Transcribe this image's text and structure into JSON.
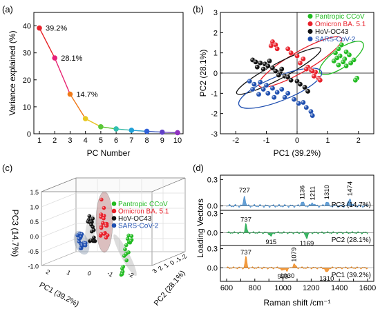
{
  "panel_labels": [
    "(a)",
    "(b)",
    "(c)",
    "(d)"
  ],
  "colors": {
    "pantropic": "#22bb22",
    "omicron": "#e8202a",
    "hov": "#111111",
    "sars": "#1f4fb0",
    "pc3_fill": "#4a8fcf",
    "pc2_fill": "#1aa84a",
    "pc1_fill": "#f08a1e"
  },
  "chart_data": [
    {
      "panel": "(a)",
      "type": "line",
      "xlabel": "PC Number",
      "ylabel": "Variance explained (%)",
      "xlim": [
        1,
        10
      ],
      "ylim": [
        0,
        45
      ],
      "xticks": [
        1,
        2,
        3,
        4,
        5,
        6,
        7,
        8,
        9,
        10
      ],
      "yticks": [
        0,
        10,
        20,
        30,
        40
      ],
      "x": [
        1,
        2,
        3,
        4,
        5,
        6,
        7,
        8,
        9,
        10
      ],
      "y": [
        39.2,
        28.1,
        14.7,
        5.6,
        2.6,
        1.8,
        1.3,
        0.9,
        0.6,
        0.4
      ],
      "point_colors": [
        "#e8202a",
        "#e8207a",
        "#f07a18",
        "#e8c820",
        "#5bc838",
        "#30c0b0",
        "#20a0d8",
        "#3060d8",
        "#6040c8",
        "#9030c0"
      ],
      "annotations": [
        {
          "x": 1,
          "y": 39.2,
          "text": "39.2%"
        },
        {
          "x": 2,
          "y": 28.1,
          "text": "28.1%"
        },
        {
          "x": 3,
          "y": 14.7,
          "text": "14.7%"
        }
      ]
    },
    {
      "panel": "(b)",
      "type": "scatter",
      "xlabel": "PC1 (39.2%)",
      "ylabel": "PC2 (28.1%)",
      "xlim": [
        -2.5,
        2.5
      ],
      "ylim": [
        -3,
        3
      ],
      "xticks": [
        -2,
        -1,
        0,
        1,
        2
      ],
      "yticks": [
        -3,
        -2,
        -1,
        0,
        1,
        2,
        3
      ],
      "legend": [
        "Pantropic CCoV",
        "Omicron BA. 5.1",
        "HoV-OC43",
        "SARS-CoV-2"
      ],
      "legend_position": "top-right",
      "series": [
        {
          "name": "Pantropic CCoV",
          "color": "#22bb22",
          "ellipse": {
            "cx": 1.45,
            "cy": 0.75,
            "rx": 0.85,
            "ry": 0.45,
            "angle": -35
          },
          "points": [
            [
              1.45,
              1.4
            ],
            [
              1.35,
              1.2
            ],
            [
              1.6,
              1.05
            ],
            [
              1.25,
              1.0
            ],
            [
              1.7,
              0.9
            ],
            [
              1.4,
              0.85
            ],
            [
              1.55,
              0.7
            ],
            [
              1.85,
              0.65
            ],
            [
              1.2,
              0.6
            ],
            [
              1.5,
              0.55
            ],
            [
              1.75,
              0.5
            ],
            [
              1.35,
              0.4
            ],
            [
              1.6,
              0.35
            ],
            [
              1.95,
              -0.25
            ],
            [
              1.9,
              -0.35
            ],
            [
              1.3,
              0.75
            ]
          ]
        },
        {
          "name": "Omicron BA. 5.1",
          "color": "#e8202a",
          "ellipse": {
            "cx": 0.1,
            "cy": 0.55,
            "rx": 1.55,
            "ry": 0.5,
            "angle": -30
          },
          "points": [
            [
              -0.8,
              1.55
            ],
            [
              -0.7,
              1.4
            ],
            [
              -0.85,
              1.35
            ],
            [
              -0.65,
              1.2
            ],
            [
              -0.3,
              1.2
            ],
            [
              -0.2,
              1.0
            ],
            [
              0.0,
              0.85
            ],
            [
              0.2,
              0.7
            ],
            [
              0.1,
              0.5
            ],
            [
              0.35,
              0.3
            ],
            [
              0.3,
              0.2
            ],
            [
              0.45,
              0.15
            ],
            [
              0.6,
              0.05
            ],
            [
              0.7,
              -0.25
            ],
            [
              0.75,
              -0.35
            ],
            [
              0.55,
              -0.15
            ],
            [
              0.5,
              0.1
            ]
          ]
        },
        {
          "name": "HoV-OC43",
          "color": "#111111",
          "ellipse": {
            "cx": -0.6,
            "cy": 0.1,
            "rx": 1.55,
            "ry": 0.38,
            "angle": -28
          },
          "points": [
            [
              -1.45,
              0.65
            ],
            [
              -1.35,
              0.55
            ],
            [
              -1.2,
              0.5
            ],
            [
              -1.05,
              0.45
            ],
            [
              -0.95,
              0.35
            ],
            [
              -1.1,
              0.2
            ],
            [
              -0.8,
              0.25
            ],
            [
              -0.7,
              0.1
            ],
            [
              -0.55,
              0.05
            ],
            [
              -0.6,
              -0.1
            ],
            [
              -0.4,
              -0.15
            ],
            [
              -0.3,
              -0.2
            ],
            [
              -0.2,
              -0.35
            ],
            [
              0.0,
              -0.4
            ],
            [
              0.1,
              -0.55
            ],
            [
              0.25,
              -0.7
            ],
            [
              0.35,
              -0.9
            ],
            [
              -0.9,
              0.6
            ],
            [
              -1.3,
              0.3
            ],
            [
              -0.5,
              0.2
            ]
          ]
        },
        {
          "name": "SARS-CoV-2",
          "color": "#1f4fb0",
          "ellipse": {
            "cx": -0.55,
            "cy": -0.75,
            "rx": 1.45,
            "ry": 0.6,
            "angle": -22
          },
          "points": [
            [
              -1.55,
              -0.4
            ],
            [
              -1.4,
              -0.55
            ],
            [
              -1.45,
              -0.8
            ],
            [
              -1.2,
              -0.45
            ],
            [
              -1.1,
              -0.8
            ],
            [
              -1.0,
              -0.6
            ],
            [
              -0.95,
              -1.0
            ],
            [
              -0.8,
              -0.75
            ],
            [
              -0.65,
              -0.95
            ],
            [
              -0.5,
              -0.8
            ],
            [
              -0.4,
              -1.2
            ],
            [
              -0.3,
              -1.0
            ],
            [
              -0.1,
              -1.3
            ],
            [
              0.05,
              -1.5
            ],
            [
              0.2,
              -1.45
            ],
            [
              0.3,
              -1.7
            ],
            [
              0.45,
              -1.9
            ],
            [
              0.5,
              -2.1
            ],
            [
              -0.75,
              -1.2
            ],
            [
              -1.25,
              -1.05
            ]
          ]
        }
      ]
    },
    {
      "panel": "(c)",
      "type": "scatter",
      "xlabel": "PC1 (39.2%)",
      "ylabel": "PC3 (14.7%)",
      "zlabel": "PC2 (28.1%)",
      "z_ticks": [
        "1.5",
        "1.0",
        "0.5",
        "0.0",
        "-0.5",
        "-1.0"
      ],
      "x_ticks": [
        "2",
        "1",
        "0",
        "-1",
        "-2"
      ],
      "y_ticks": [
        "3",
        "2",
        "1",
        "0",
        "-1",
        "-2"
      ],
      "legend": [
        "Pantropic CCoV",
        "Omicron BA. 5.1",
        "HoV-OC43",
        "SARS-CoV-2"
      ]
    },
    {
      "panel": "(d)",
      "type": "area",
      "xlabel": "Raman shift /cm⁻¹",
      "ylabel": "Loading Vectors",
      "xlim": [
        600,
        1600
      ],
      "xticks": [
        600,
        700,
        800,
        900,
        1000,
        1100,
        1200,
        1300,
        1400,
        1500,
        1600
      ],
      "subplots": [
        {
          "name": "PC3 (14.7%)",
          "color": "#4a8fcf",
          "ylim": [
            -0.05,
            0.35
          ],
          "yticks": [
            "0.3",
            "0.0"
          ],
          "peaks": [
            [
              727,
              0.13
            ],
            [
              1136,
              0.05
            ],
            [
              1211,
              0.04
            ],
            [
              1310,
              0.05
            ],
            [
              1474,
              0.09
            ]
          ],
          "labels": [
            [
              "727",
              "up"
            ],
            [
              "1136",
              "up"
            ],
            [
              "1211",
              "up"
            ],
            [
              "1310",
              "up"
            ],
            [
              "1474",
              "up"
            ]
          ]
        },
        {
          "name": "PC2 (28.1%)",
          "color": "#1aa84a",
          "ylim": [
            -0.2,
            0.35
          ],
          "yticks": [
            "0.3",
            "0.0"
          ],
          "peaks": [
            [
              737,
              0.14
            ],
            [
              915,
              -0.06
            ],
            [
              1169,
              -0.08
            ]
          ],
          "labels": [
            [
              "737",
              "up"
            ],
            [
              "915",
              "down"
            ],
            [
              "1169",
              "down"
            ]
          ]
        },
        {
          "name": "PC1 (39.2%)",
          "color": "#f08a1e",
          "ylim": [
            -0.2,
            0.35
          ],
          "yticks": [
            "0.3",
            "0.0"
          ],
          "peaks": [
            [
              737,
              0.18
            ],
            [
              999,
              -0.05
            ],
            [
              1030,
              -0.04
            ],
            [
              1079,
              0.06
            ],
            [
              1310,
              -0.08
            ]
          ],
          "labels": [
            [
              "737",
              "up"
            ],
            [
              "999",
              "down"
            ],
            [
              "1030",
              "down"
            ],
            [
              "1079",
              "up"
            ],
            [
              "1310",
              "down"
            ]
          ]
        }
      ]
    }
  ]
}
